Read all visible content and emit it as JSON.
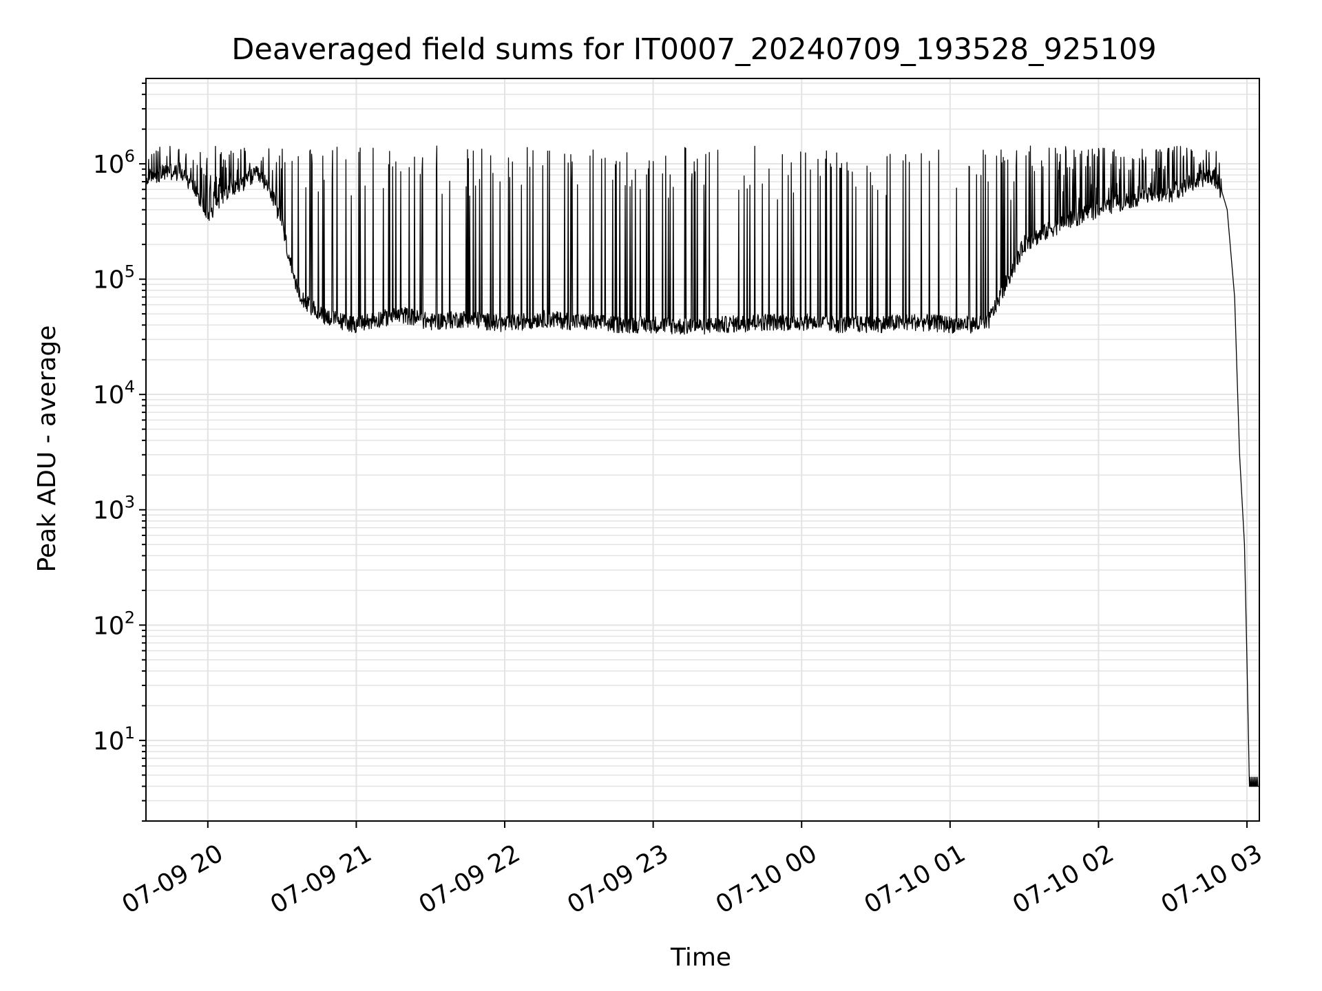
{
  "chart_data": {
    "type": "line",
    "title": "Deaveraged field sums for IT0007_20240709_193528_925109",
    "xlabel": "Time",
    "ylabel": "Peak ADU - average",
    "x_axis": {
      "type": "time",
      "range": [
        "2024-07-09 19:35",
        "2024-07-10 03:05"
      ],
      "ticks": [
        "2024-07-09 20:00",
        "2024-07-09 21:00",
        "2024-07-09 22:00",
        "2024-07-09 23:00",
        "2024-07-10 00:00",
        "2024-07-10 01:00",
        "2024-07-10 02:00",
        "2024-07-10 03:00"
      ],
      "tick_labels": [
        "07-09 20",
        "07-09 21",
        "07-09 22",
        "07-09 23",
        "07-10 00",
        "07-10 01",
        "07-10 02",
        "07-10 03"
      ]
    },
    "y_axis": {
      "scale": "log",
      "range": [
        2,
        5500000
      ],
      "ticks": [
        10,
        100,
        1000,
        10000,
        100000,
        1000000
      ],
      "tick_labels": [
        {
          "base": "10",
          "exp": "1"
        },
        {
          "base": "10",
          "exp": "2"
        },
        {
          "base": "10",
          "exp": "3"
        },
        {
          "base": "10",
          "exp": "4"
        },
        {
          "base": "10",
          "exp": "5"
        },
        {
          "base": "10",
          "exp": "6"
        }
      ]
    },
    "grid": true,
    "line_color": "#000000",
    "grid_color": "#e3e3e3",
    "series": [
      {
        "x": [
          "2024-07-09 19:35",
          "2024-07-09 19:40",
          "2024-07-09 19:45",
          "2024-07-09 19:50",
          "2024-07-09 19:55",
          "2024-07-09 20:00",
          "2024-07-09 20:05",
          "2024-07-09 20:10",
          "2024-07-09 20:15",
          "2024-07-09 20:20",
          "2024-07-09 20:25",
          "2024-07-09 20:30",
          "2024-07-09 20:35",
          "2024-07-09 20:40",
          "2024-07-09 20:45",
          "2024-07-09 20:50",
          "2024-07-09 20:55",
          "2024-07-09 21:00",
          "2024-07-09 21:10",
          "2024-07-09 21:20",
          "2024-07-09 21:30",
          "2024-07-09 21:45",
          "2024-07-09 22:00",
          "2024-07-09 22:15",
          "2024-07-09 22:30",
          "2024-07-09 22:45",
          "2024-07-09 23:00",
          "2024-07-09 23:15",
          "2024-07-09 23:30",
          "2024-07-09 23:45",
          "2024-07-10 00:00",
          "2024-07-10 00:15",
          "2024-07-10 00:30",
          "2024-07-10 00:45",
          "2024-07-10 01:00",
          "2024-07-10 01:15",
          "2024-07-10 01:30",
          "2024-07-10 01:45",
          "2024-07-10 02:00",
          "2024-07-10 02:15",
          "2024-07-10 02:30",
          "2024-07-10 02:40",
          "2024-07-10 02:45",
          "2024-07-10 02:48",
          "2024-07-10 02:52",
          "2024-07-10 02:55",
          "2024-07-10 02:57",
          "2024-07-10 02:59",
          "2024-07-10 03:00",
          "2024-07-10 03:01",
          "2024-07-10 03:02",
          "2024-07-10 03:05"
        ],
        "y": [
          700000,
          800000,
          850000,
          800000,
          600000,
          350000,
          500000,
          600000,
          700000,
          800000,
          600000,
          300000,
          90000,
          60000,
          50000,
          45000,
          42000,
          40000,
          45000,
          48000,
          42000,
          45000,
          40000,
          45000,
          42000,
          40000,
          40000,
          38000,
          40000,
          42000,
          42000,
          40000,
          40000,
          42000,
          40000,
          40000,
          200000,
          300000,
          400000,
          500000,
          550000,
          700000,
          800000,
          700000,
          400000,
          70000,
          3000,
          500,
          50,
          4,
          4,
          4
        ],
        "spike_peaks": [
          1300000,
          1300000,
          1300000,
          1200000
        ]
      }
    ]
  }
}
